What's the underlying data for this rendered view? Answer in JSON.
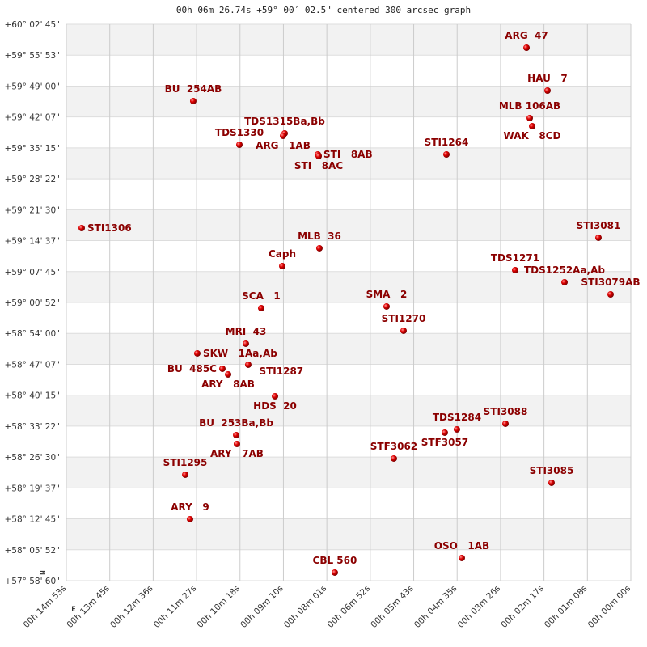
{
  "chart_data": {
    "type": "scatter",
    "title": "00h 06m 26.74s +59° 00′ 02.5\" centered 300 arcsec graph",
    "x_unit": "RA seconds of time",
    "y_unit": "Dec degrees",
    "xlim": [
      893,
      0
    ],
    "ylim": [
      57.983333,
      60.045833
    ],
    "grid": true,
    "x_ticks": [
      "00h 14m 53s",
      "00h 13m 45s",
      "00h 12m 36s",
      "00h 11m 27s",
      "00h 10m 18s",
      "00h 09m 10s",
      "00h 08m 01s",
      "00h 06m 52s",
      "00h 05m 43s",
      "00h 04m 35s",
      "00h 03m 26s",
      "00h 02m 17s",
      "00h 01m 08s",
      "00h 00m 00s"
    ],
    "y_ticks": [
      "+60° 02' 45\"",
      "+59° 55' 53\"",
      "+59° 49' 00\"",
      "+59° 42' 07\"",
      "+59° 35' 15\"",
      "+59° 28' 22\"",
      "+59° 21' 30\"",
      "+59° 14' 37\"",
      "+59° 07' 45\"",
      "+59° 00' 52\"",
      "+58° 54' 00\"",
      "+58° 47' 07\"",
      "+58° 40' 15\"",
      "+58° 33' 22\"",
      "+58° 26' 30\"",
      "+58° 19' 37\"",
      "+58° 12' 45\"",
      "+58° 05' 52\"",
      "+57° 58' 60\""
    ],
    "orientation_marks": {
      "north": "N",
      "east": "E"
    },
    "marker_color": "#e00000",
    "label_color": "#8b0000",
    "points": [
      {
        "label": "ARG  47",
        "ra": 165.0,
        "dec": 59.9589
      },
      {
        "label": "HAU   7",
        "ra": 131.8,
        "dec": 59.8
      },
      {
        "label": "MLB 106AB",
        "ra": 159.9,
        "dec": 59.6981
      },
      {
        "label": "WAK   8CD",
        "ra": 156.1,
        "dec": 59.6681
      },
      {
        "label": "BU  254AB",
        "ra": 692.2,
        "dec": 59.7611
      },
      {
        "label": "TDS1315Ba,Bb",
        "ra": 547.6,
        "dec": 59.6412
      },
      {
        "label": "ARG   1AB",
        "ra": 550.1,
        "dec": 59.6322
      },
      {
        "label": "TDS1330",
        "ra": 619.2,
        "dec": 59.5992
      },
      {
        "label": "STI   8AB",
        "ra": 495.1,
        "dec": 59.5632
      },
      {
        "label": "STI   8AC",
        "ra": 493.8,
        "dec": 59.5572
      },
      {
        "label": "STI1264",
        "ra": 291.7,
        "dec": 59.5632
      },
      {
        "label": "STI1306",
        "ra": 868.7,
        "dec": 59.2904
      },
      {
        "label": "STI3081",
        "ra": 51.2,
        "dec": 59.2545
      },
      {
        "label": "MLB  36",
        "ra": 492.6,
        "dec": 59.2155
      },
      {
        "label": "Caph",
        "ra": 551.4,
        "dec": 59.1495
      },
      {
        "label": "TDS1271",
        "ra": 183.0,
        "dec": 59.1345
      },
      {
        "label": "TDS1252Aa,Ab",
        "ra": 104.9,
        "dec": 59.0896
      },
      {
        "label": "STI3079AB",
        "ra": 32.0,
        "dec": 59.0446
      },
      {
        "label": "SCA   1",
        "ra": 584.7,
        "dec": 58.9937
      },
      {
        "label": "SMA   2",
        "ra": 386.4,
        "dec": 58.9997
      },
      {
        "label": "STI1270",
        "ra": 359.5,
        "dec": 58.9098
      },
      {
        "label": "MRI  43",
        "ra": 609.0,
        "dec": 58.8618
      },
      {
        "label": "SKW   1Aa,Ab",
        "ra": 685.8,
        "dec": 58.8258
      },
      {
        "label": "BU  485C",
        "ra": 646.1,
        "dec": 58.7689
      },
      {
        "label": "ARY   8AB",
        "ra": 637.1,
        "dec": 58.7479
      },
      {
        "label": "STI1287",
        "ra": 605.2,
        "dec": 58.7839
      },
      {
        "label": "HDS  20",
        "ra": 562.9,
        "dec": 58.6669
      },
      {
        "label": "STF3057",
        "ra": 294.3,
        "dec": 58.532
      },
      {
        "label": "TDS1284",
        "ra": 275.1,
        "dec": 58.544
      },
      {
        "label": "STI3088",
        "ra": 198.3,
        "dec": 58.565
      },
      {
        "label": "BU  253Ba,Bb",
        "ra": 624.3,
        "dec": 58.523
      },
      {
        "label": "ARY   7AB",
        "ra": 623.1,
        "dec": 58.4901
      },
      {
        "label": "STF3062",
        "ra": 374.9,
        "dec": 58.4361
      },
      {
        "label": "STI1295",
        "ra": 704.9,
        "dec": 58.3761
      },
      {
        "label": "STI3085",
        "ra": 125.4,
        "dec": 58.3462
      },
      {
        "label": "ARY   9",
        "ra": 697.3,
        "dec": 58.2113
      },
      {
        "label": "OSO   1AB",
        "ra": 267.4,
        "dec": 58.0674
      },
      {
        "label": "CBL 560",
        "ra": 468.3,
        "dec": 58.0134
      }
    ]
  }
}
